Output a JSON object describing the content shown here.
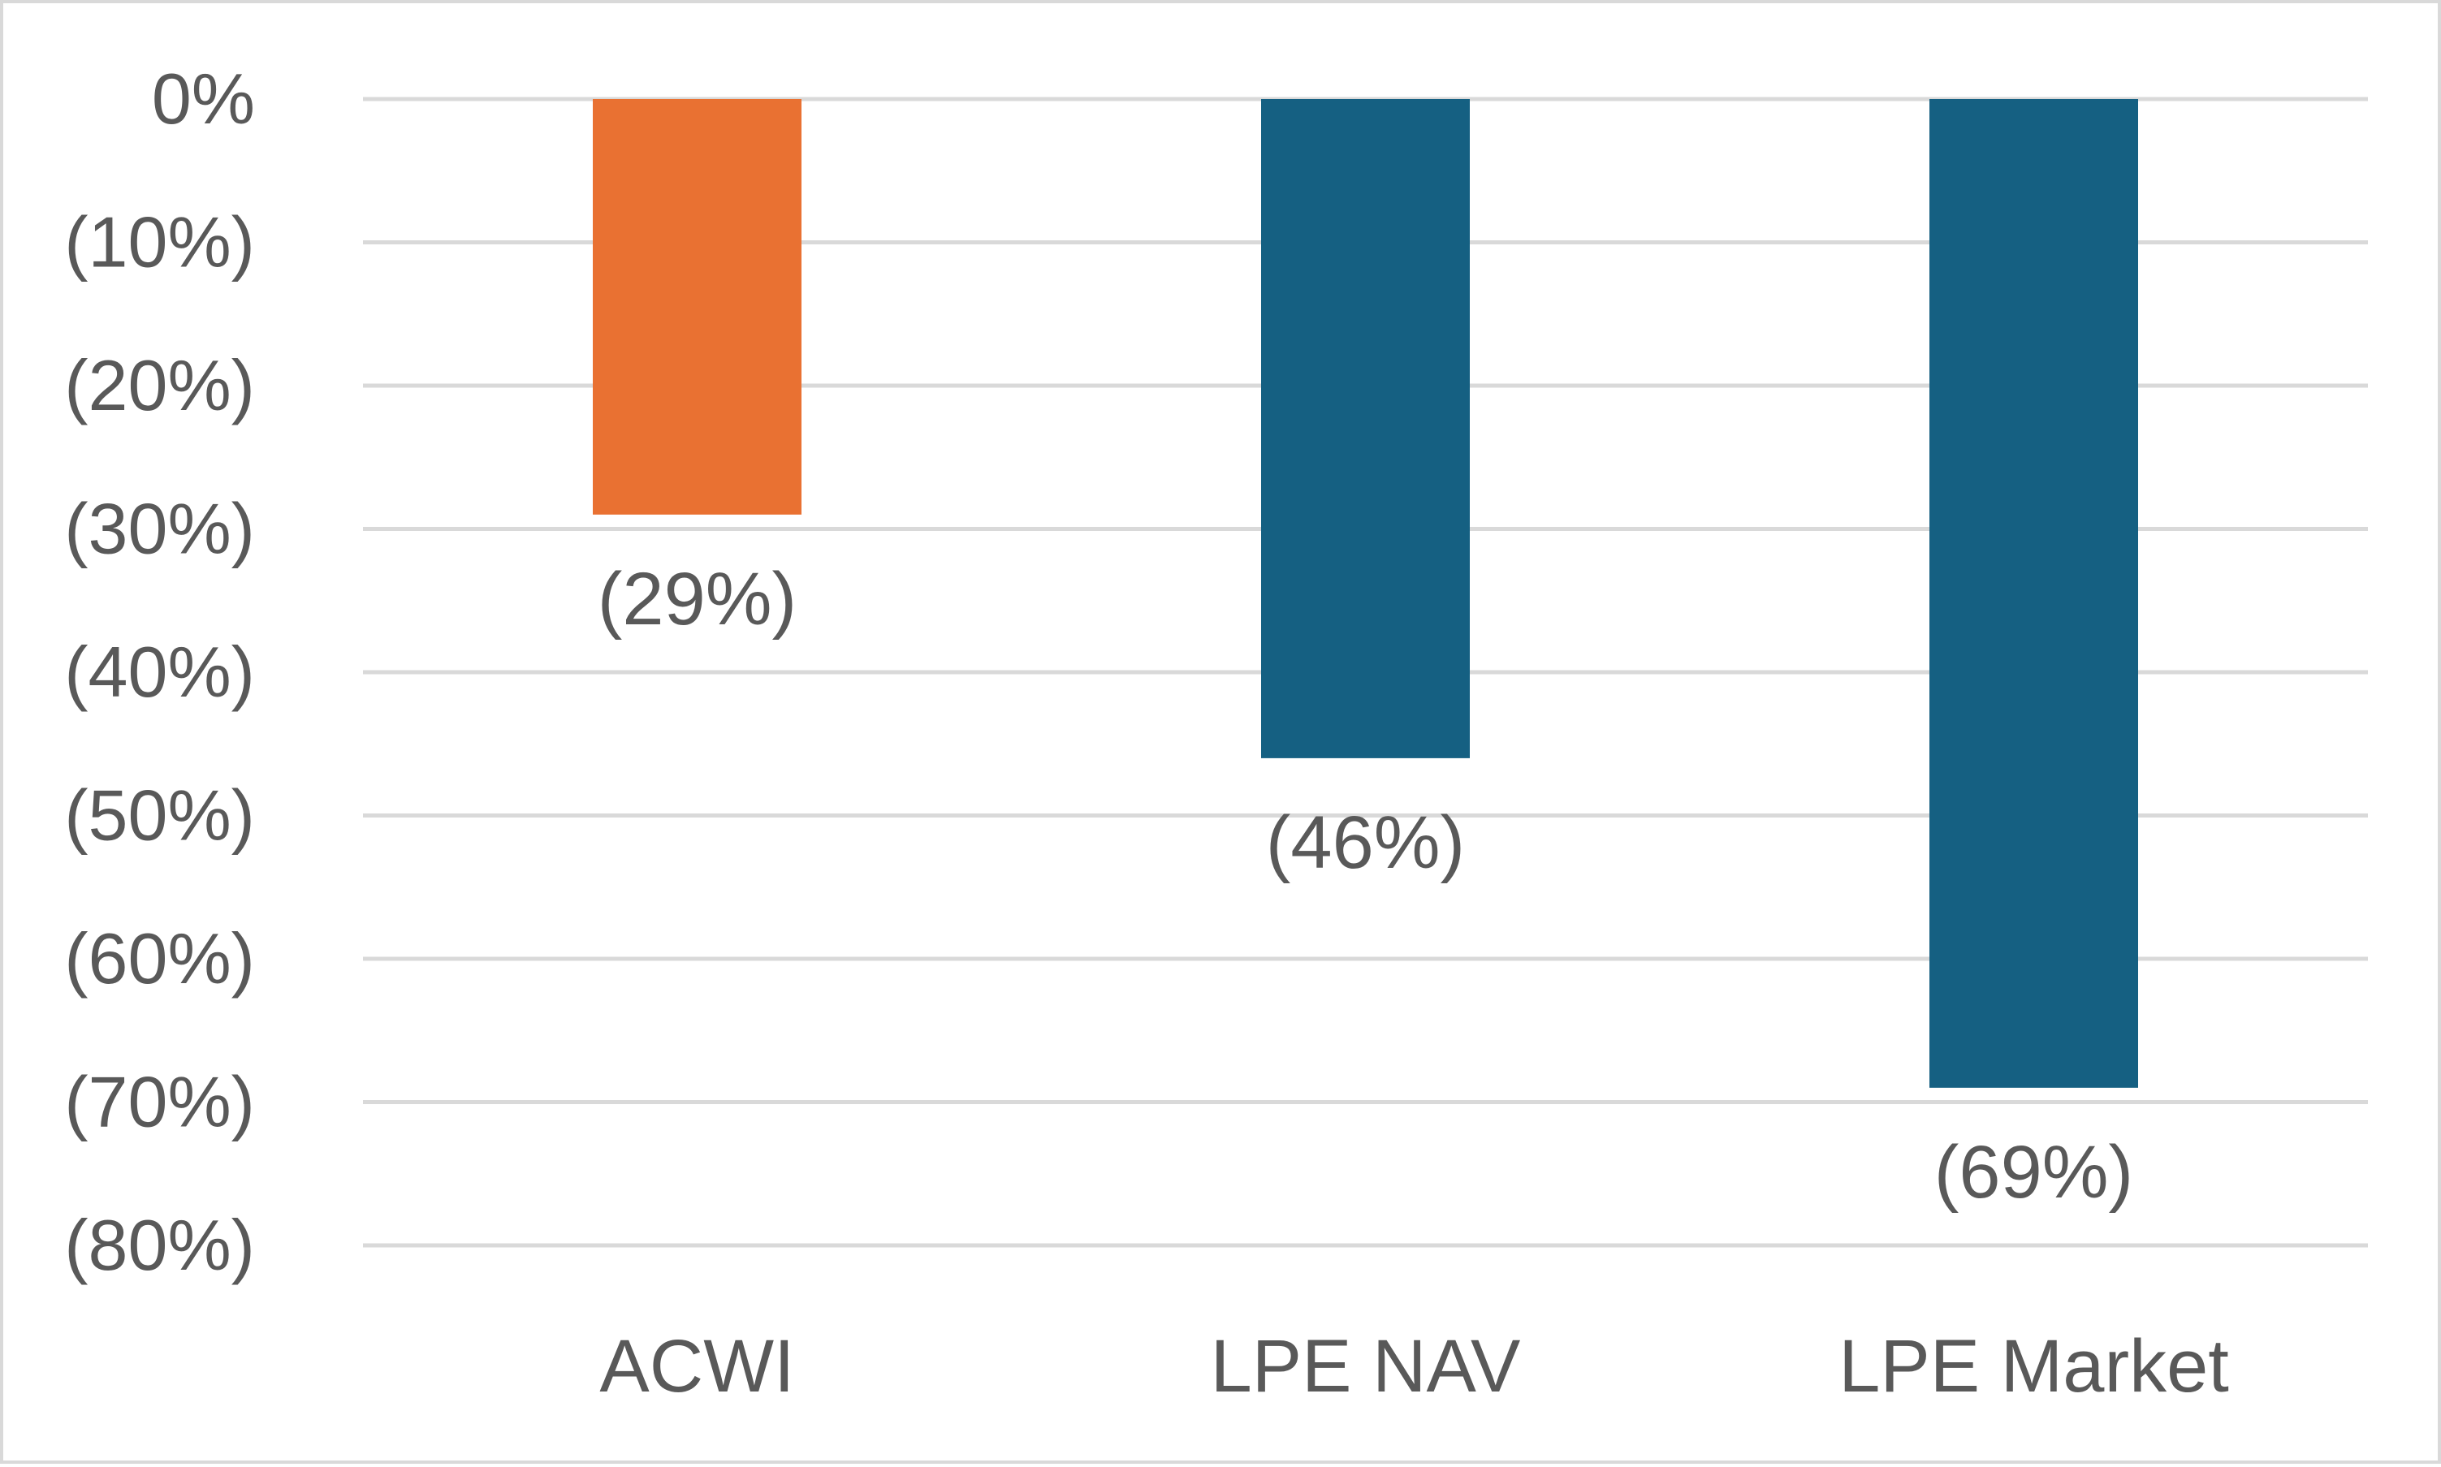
{
  "chart_data": {
    "type": "bar",
    "title": "",
    "xlabel": "",
    "ylabel": "",
    "categories": [
      "ACWI",
      "LPE NAV",
      "LPE Market"
    ],
    "values": [
      -29,
      -46,
      -69
    ],
    "data_labels": [
      "(29%)",
      "(46%)",
      "(69%)"
    ],
    "bar_colors": [
      "#e97132",
      "#156082",
      "#156082"
    ],
    "ylim": [
      -80,
      0
    ],
    "yticks": [
      0,
      -10,
      -20,
      -30,
      -40,
      -50,
      -60,
      -70,
      -80
    ],
    "ytick_labels": [
      "0%",
      "(10%)",
      "(20%)",
      "(30%)",
      "(40%)",
      "(50%)",
      "(60%)",
      "(70%)",
      "(80%)"
    ],
    "grid": true,
    "legend": "none"
  }
}
